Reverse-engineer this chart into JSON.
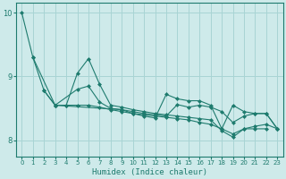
{
  "xlabel": "Humidex (Indice chaleur)",
  "bg_color": "#ceeaea",
  "grid_color": "#a8d4d4",
  "line_color": "#1e7b6e",
  "xlim": [
    -0.5,
    23.5
  ],
  "ylim": [
    7.75,
    10.15
  ],
  "yticks": [
    8,
    9,
    10
  ],
  "xticks": [
    0,
    1,
    2,
    3,
    4,
    5,
    6,
    7,
    8,
    9,
    10,
    11,
    12,
    13,
    14,
    15,
    16,
    17,
    18,
    19,
    20,
    21,
    22,
    23
  ],
  "series": [
    {
      "x": [
        0,
        1,
        2,
        3,
        4,
        5,
        6,
        7,
        8,
        9,
        10,
        11,
        12,
        13,
        14,
        15,
        16,
        17,
        18,
        19,
        20,
        21,
        22
      ],
      "y": [
        10.0,
        9.3,
        8.78,
        8.55,
        8.55,
        9.05,
        9.28,
        8.88,
        8.55,
        8.52,
        8.48,
        8.45,
        8.42,
        8.4,
        8.38,
        8.36,
        8.34,
        8.32,
        8.15,
        8.05,
        8.18,
        8.18,
        8.18
      ]
    },
    {
      "x": [
        2,
        3,
        4,
        5,
        6,
        7,
        8,
        9,
        10,
        11,
        12,
        13,
        14,
        15,
        16,
        17,
        18,
        19,
        20,
        21,
        22,
        23
      ],
      "y": [
        8.78,
        8.55,
        8.55,
        8.55,
        8.55,
        8.52,
        8.48,
        8.45,
        8.42,
        8.4,
        8.38,
        8.36,
        8.34,
        8.32,
        8.28,
        8.25,
        8.18,
        8.1,
        8.18,
        8.22,
        8.25,
        8.18
      ]
    },
    {
      "x": [
        1,
        3,
        5,
        6,
        7,
        8,
        9,
        10,
        11,
        12,
        13,
        14,
        15,
        16,
        17,
        18,
        19,
        20,
        21,
        22,
        23
      ],
      "y": [
        9.3,
        8.55,
        8.8,
        8.85,
        8.6,
        8.5,
        8.48,
        8.42,
        8.38,
        8.35,
        8.72,
        8.65,
        8.62,
        8.62,
        8.55,
        8.18,
        8.55,
        8.45,
        8.42,
        8.42,
        8.18
      ]
    },
    {
      "x": [
        3,
        9,
        10,
        11,
        12,
        13,
        14,
        15,
        16,
        17,
        18,
        19,
        20,
        21,
        22,
        23
      ],
      "y": [
        8.55,
        8.48,
        8.45,
        8.42,
        8.4,
        8.38,
        8.56,
        8.52,
        8.55,
        8.52,
        8.45,
        8.28,
        8.38,
        8.42,
        8.42,
        8.18
      ]
    }
  ]
}
